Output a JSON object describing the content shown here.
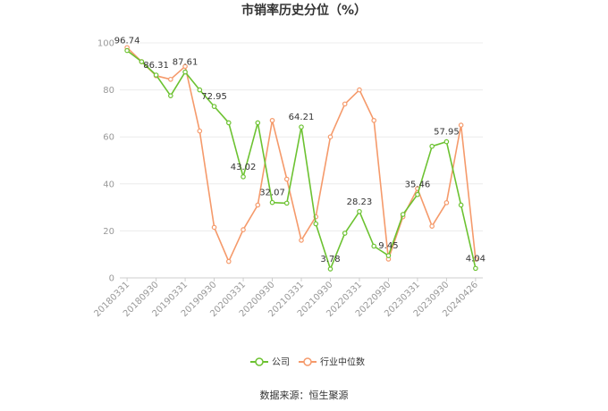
{
  "chart_data": {
    "type": "line",
    "title": "市销率历史分位（%）",
    "xlabel": "",
    "ylabel": "",
    "ylim": [
      0,
      100
    ],
    "yticks": [
      0,
      20,
      40,
      60,
      80,
      100
    ],
    "x_tick_labels": [
      "20180331",
      "20180930",
      "20190331",
      "20190930",
      "20200331",
      "20200930",
      "20210331",
      "20210930",
      "20220331",
      "20220930",
      "20230331",
      "20230930",
      "20240426"
    ],
    "x": [
      "20180331",
      "20180630",
      "20180930",
      "20181231",
      "20190331",
      "20190630",
      "20190930",
      "20191231",
      "20200331",
      "20200630",
      "20200930",
      "20201231",
      "20210331",
      "20210630",
      "20210930",
      "20211231",
      "20220331",
      "20220630",
      "20220930",
      "20221231",
      "20230331",
      "20230630",
      "20230930",
      "20231231",
      "20240426"
    ],
    "series": [
      {
        "name": "公司",
        "color": "#6cc231",
        "values": [
          96.74,
          92.0,
          86.31,
          77.5,
          87.61,
          80.0,
          72.95,
          66.0,
          43.02,
          66.0,
          32.07,
          31.8,
          64.21,
          23.0,
          3.78,
          19.0,
          28.23,
          13.5,
          9.45,
          27.0,
          35.46,
          56.0,
          57.95,
          31.0,
          4.04
        ],
        "labels": {
          "0": "96.74",
          "2": "86.31",
          "4": "87.61",
          "6": "72.95",
          "8": "43.02",
          "10": "32.07",
          "12": "64.21",
          "14": "3.78",
          "16": "28.23",
          "18": "9.45",
          "20": "35.46",
          "22": "57.95",
          "24": "4.04"
        }
      },
      {
        "name": "行业中位数",
        "color": "#f59a6b",
        "values": [
          98.0,
          92.0,
          86.0,
          84.5,
          90.0,
          62.5,
          21.5,
          7.0,
          20.5,
          31.0,
          67.0,
          42.0,
          16.0,
          26.0,
          60.0,
          74.0,
          80.0,
          67.0,
          8.0,
          26.0,
          38.0,
          22.0,
          32.0,
          65.0,
          8.0
        ]
      }
    ],
    "grid": true,
    "legend": "bottom-center"
  },
  "legend": [
    {
      "name": "公司",
      "color": "#6cc231"
    },
    {
      "name": "行业中位数",
      "color": "#f59a6b"
    }
  ],
  "source": "数据来源：恒生聚源"
}
